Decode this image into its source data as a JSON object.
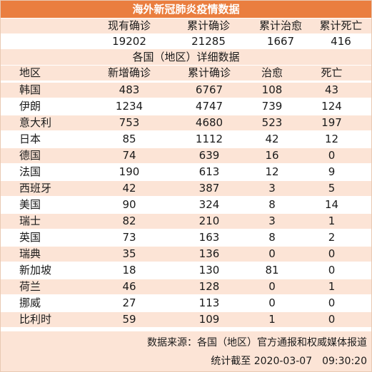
{
  "title": "海外新冠肺炎疫情数据",
  "summary": {
    "headers": [
      "现有确诊",
      "累计确诊",
      "累计治愈",
      "累计死亡"
    ],
    "values": [
      "19202",
      "21285",
      "1667",
      "416"
    ]
  },
  "detail_title": "各国（地区）详细数据",
  "table": {
    "headers": [
      "地区",
      "新增确诊",
      "累计确诊",
      "治愈",
      "死亡"
    ],
    "rows": [
      [
        "韩国",
        "483",
        "6767",
        "108",
        "43"
      ],
      [
        "伊朗",
        "1234",
        "4747",
        "739",
        "124"
      ],
      [
        "意大利",
        "753",
        "4680",
        "523",
        "197"
      ],
      [
        "日本",
        "85",
        "1112",
        "42",
        "12"
      ],
      [
        "德国",
        "74",
        "639",
        "16",
        "0"
      ],
      [
        "法国",
        "190",
        "613",
        "12",
        "9"
      ],
      [
        "西班牙",
        "42",
        "387",
        "3",
        "5"
      ],
      [
        "美国",
        "90",
        "324",
        "8",
        "14"
      ],
      [
        "瑞士",
        "82",
        "210",
        "3",
        "1"
      ],
      [
        "英国",
        "73",
        "163",
        "8",
        "2"
      ],
      [
        "瑞典",
        "35",
        "136",
        "0",
        "0"
      ],
      [
        "新加坡",
        "18",
        "130",
        "81",
        "0"
      ],
      [
        "荷兰",
        "46",
        "128",
        "0",
        "1"
      ],
      [
        "挪威",
        "27",
        "113",
        "0",
        "0"
      ],
      [
        "比利时",
        "59",
        "109",
        "1",
        "0"
      ]
    ]
  },
  "footer": {
    "source": "数据来源：各国（地区）官方通报和权威媒体报道",
    "updated": "统计截至 2020-03-07　09:30:20"
  },
  "colors": {
    "header": "#ea7e3f",
    "peach": "#fce4d6",
    "white": "#ffffff"
  }
}
